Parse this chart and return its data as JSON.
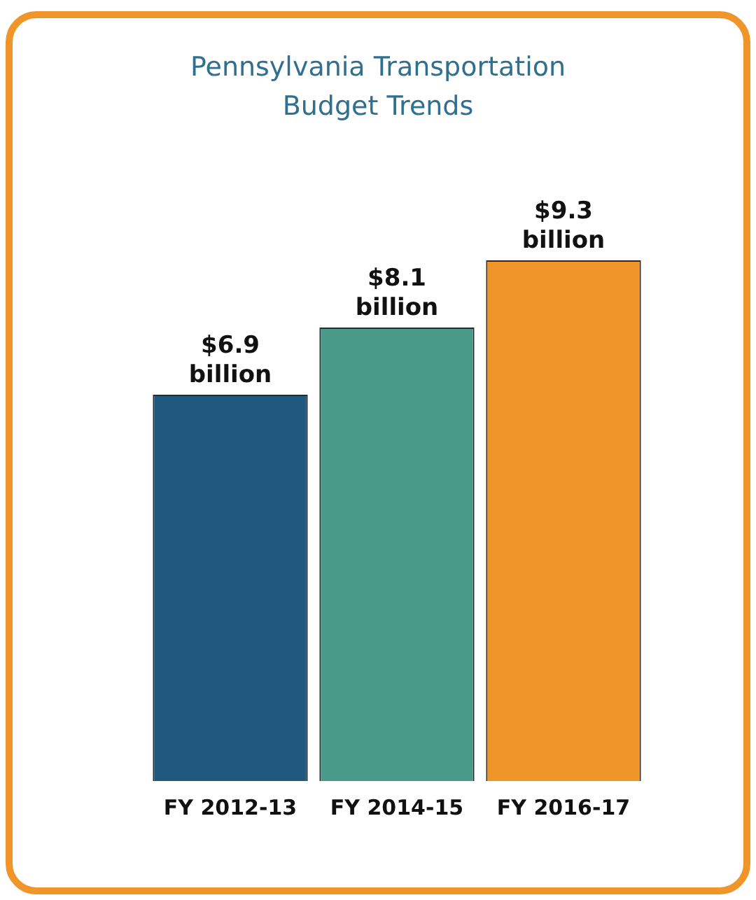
{
  "chart_data": {
    "type": "bar",
    "title": "Pennsylvania Transportation Budget Trends",
    "categories": [
      "FY 2012-13",
      "FY 2014-15",
      "FY 2016-17"
    ],
    "values": [
      6.9,
      8.1,
      9.3
    ],
    "colors": [
      "#1f5a7e",
      "#4a9a8a",
      "#f0952a"
    ],
    "value_labels": [
      "$6.9 billion",
      "$8.1 billion",
      "$9.3 billion"
    ],
    "tick_labels": "x",
    "grid": false,
    "legend": false
  }
}
